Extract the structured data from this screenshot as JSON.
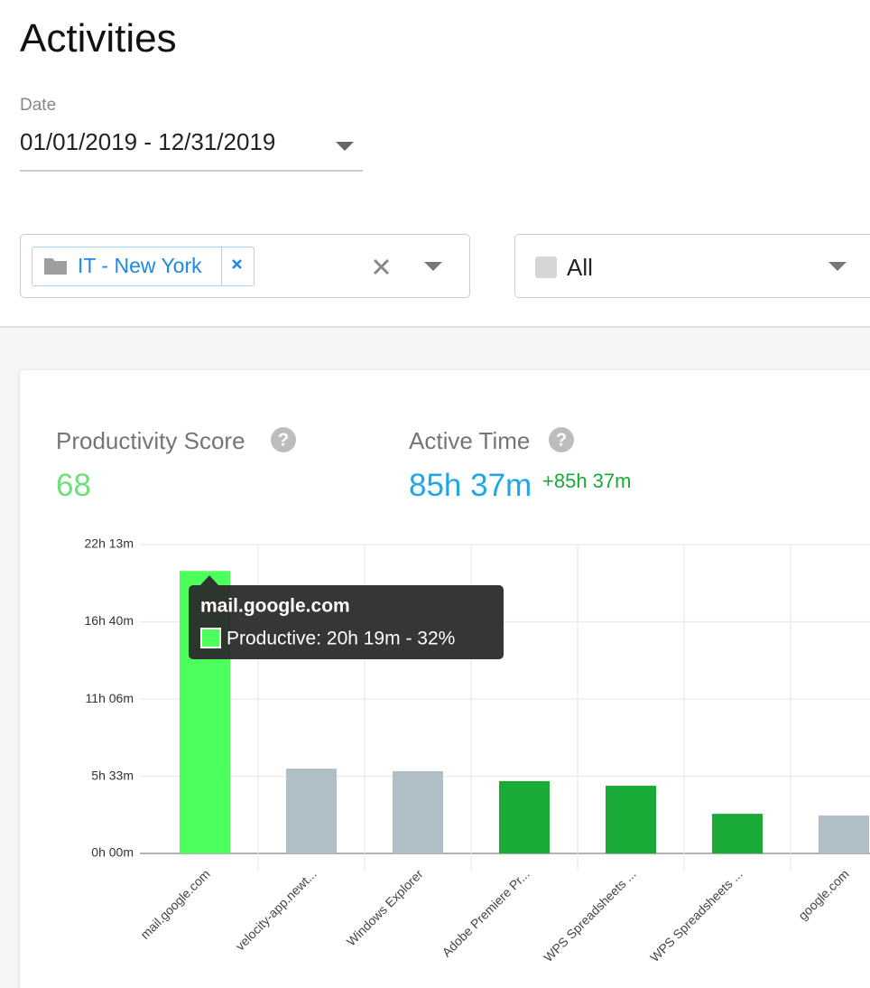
{
  "header": {
    "title": "Activities"
  },
  "date_filter": {
    "label": "Date",
    "value": "01/01/2019 - 12/31/2019"
  },
  "group_filter": {
    "chip": "IT - New York"
  },
  "type_filter": {
    "value": "All"
  },
  "stats": [
    {
      "label": "Productivity Score",
      "value": "68"
    },
    {
      "label": "Active Time",
      "value": "85h 37m",
      "delta": "+85h 37m"
    }
  ],
  "chart_data": {
    "type": "bar",
    "categories": [
      "mail.google.com",
      "velocity-app.newt...",
      "Windows Explorer",
      "Adobe Premiere Pr...",
      "WPS Spreadsheets ...",
      "WPS Spreadsheets ...",
      "google.com"
    ],
    "values": [
      1219,
      366,
      355,
      312,
      292,
      171,
      164
    ],
    "colors": [
      "#4cff5c",
      "#b0bec5",
      "#b0bec5",
      "#1aaa37",
      "#1aaa37",
      "#1aaa37",
      "#b0bec5"
    ],
    "ylim": [
      0,
      1333
    ],
    "yticks": [
      {
        "value": 0,
        "label": "0h 00m"
      },
      {
        "value": 333,
        "label": "5h 33m"
      },
      {
        "value": 666,
        "label": "11h 06m"
      },
      {
        "value": 1000,
        "label": "16h 40m"
      },
      {
        "value": 1333,
        "label": "22h 13m"
      }
    ],
    "grid": true,
    "tooltip": {
      "title": "mail.google.com",
      "text": "Productive: 20h 19m - 32%"
    }
  }
}
